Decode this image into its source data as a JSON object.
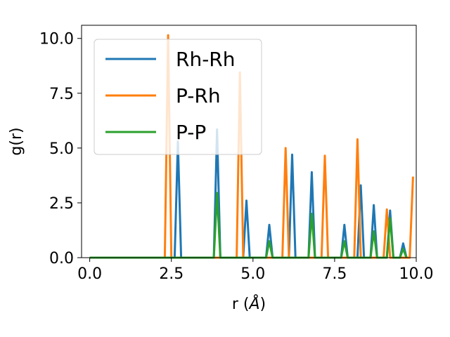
{
  "chart_data": {
    "type": "line",
    "title": "",
    "xlabel": "r (",
    "xlabel_symbol": "Å",
    "xlabel_close": ")",
    "ylabel": "g(r)",
    "xlim": [
      -0.25,
      10.0
    ],
    "ylim": [
      0,
      10.6
    ],
    "x_ticks": [
      0.0,
      2.5,
      5.0,
      7.5,
      10.0
    ],
    "x_tick_labels": [
      "0.0",
      "2.5",
      "5.0",
      "7.5",
      "10.0"
    ],
    "y_ticks": [
      0.0,
      2.5,
      5.0,
      7.5,
      10.0
    ],
    "y_tick_labels": [
      "0.0",
      "2.5",
      "5.0",
      "7.5",
      "10.0"
    ],
    "grid": false,
    "legend_position": "upper-left",
    "series": [
      {
        "name": "Rh-Rh",
        "color": "#1f77b4",
        "points": [
          [
            0.0,
            0
          ],
          [
            2.6,
            0
          ],
          [
            2.7,
            5.3
          ],
          [
            2.8,
            0
          ],
          [
            3.8,
            0
          ],
          [
            3.9,
            5.85
          ],
          [
            4.0,
            0
          ],
          [
            4.7,
            0
          ],
          [
            4.8,
            2.6
          ],
          [
            4.9,
            0
          ],
          [
            5.4,
            0
          ],
          [
            5.5,
            1.5
          ],
          [
            5.6,
            0
          ],
          [
            6.1,
            0
          ],
          [
            6.2,
            4.7
          ],
          [
            6.3,
            0
          ],
          [
            6.7,
            0
          ],
          [
            6.8,
            3.9
          ],
          [
            6.9,
            0
          ],
          [
            7.7,
            0
          ],
          [
            7.8,
            1.5
          ],
          [
            7.9,
            0
          ],
          [
            8.2,
            0
          ],
          [
            8.3,
            3.3
          ],
          [
            8.4,
            0
          ],
          [
            8.6,
            0
          ],
          [
            8.7,
            2.4
          ],
          [
            8.8,
            0
          ],
          [
            9.1,
            0
          ],
          [
            9.2,
            2.15
          ],
          [
            9.3,
            0
          ],
          [
            9.5,
            0
          ],
          [
            9.6,
            0.65
          ],
          [
            9.7,
            0
          ]
        ]
      },
      {
        "name": "P-Rh",
        "color": "#ff7f0e",
        "points": [
          [
            0.0,
            0
          ],
          [
            2.3,
            0
          ],
          [
            2.4,
            10.15
          ],
          [
            2.5,
            0
          ],
          [
            4.5,
            0
          ],
          [
            4.6,
            8.45
          ],
          [
            4.7,
            0
          ],
          [
            5.9,
            0
          ],
          [
            6.0,
            5.0
          ],
          [
            6.1,
            0
          ],
          [
            7.1,
            0
          ],
          [
            7.2,
            4.65
          ],
          [
            7.3,
            0
          ],
          [
            8.1,
            0
          ],
          [
            8.2,
            5.4
          ],
          [
            8.3,
            0
          ],
          [
            9.0,
            0
          ],
          [
            9.1,
            2.2
          ],
          [
            9.2,
            0
          ],
          [
            9.8,
            0
          ],
          [
            9.9,
            3.7
          ]
        ]
      },
      {
        "name": "P-P",
        "color": "#2ca02c",
        "points": [
          [
            0.0,
            0
          ],
          [
            3.8,
            0
          ],
          [
            3.9,
            2.95
          ],
          [
            4.0,
            0
          ],
          [
            5.4,
            0
          ],
          [
            5.5,
            0.75
          ],
          [
            5.6,
            0
          ],
          [
            6.7,
            0
          ],
          [
            6.8,
            2.0
          ],
          [
            6.9,
            0
          ],
          [
            7.7,
            0
          ],
          [
            7.8,
            0.75
          ],
          [
            7.9,
            0
          ],
          [
            8.6,
            0
          ],
          [
            8.7,
            1.2
          ],
          [
            8.8,
            0
          ],
          [
            9.1,
            0
          ],
          [
            9.2,
            1.8
          ],
          [
            9.3,
            0
          ],
          [
            9.5,
            0
          ],
          [
            9.6,
            0.4
          ],
          [
            9.7,
            0
          ]
        ]
      }
    ]
  }
}
